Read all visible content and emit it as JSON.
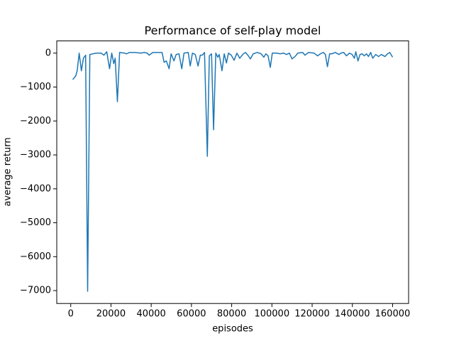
{
  "chart_data": {
    "type": "line",
    "title": "Performance of self-play model",
    "x_label": "episodes",
    "y_label": "average return",
    "color": "#1f77b4",
    "x": [
      1000,
      2500,
      3200,
      4200,
      5300,
      6300,
      7400,
      8400,
      9500,
      12700,
      15100,
      16500,
      17900,
      19300,
      20400,
      21400,
      22100,
      23200,
      24300,
      26700,
      27800,
      29200,
      32000,
      34800,
      36600,
      38000,
      39000,
      40800,
      45400,
      46400,
      47500,
      48900,
      49900,
      51300,
      52400,
      53800,
      55200,
      56300,
      58400,
      59400,
      60500,
      61900,
      63300,
      64400,
      65400,
      66500,
      67900,
      68900,
      70000,
      71000,
      72100,
      73100,
      73800,
      75200,
      76300,
      77400,
      78400,
      79800,
      81200,
      82600,
      84000,
      85800,
      86900,
      88300,
      89300,
      90700,
      92800,
      94600,
      96000,
      97000,
      98100,
      99200,
      100200,
      102300,
      104100,
      105800,
      107300,
      108700,
      110000,
      111500,
      112900,
      115300,
      116400,
      118200,
      121000,
      122700,
      124100,
      125500,
      126600,
      127600,
      128700,
      129800,
      131500,
      133300,
      134300,
      135700,
      137100,
      138500,
      139900,
      141000,
      141700,
      142800,
      143800,
      144900,
      145900,
      147000,
      148000,
      149100,
      150100,
      151600,
      153000,
      154400,
      156200,
      157500,
      158600,
      160000
    ],
    "values": [
      -780,
      -670,
      -520,
      0,
      -520,
      -150,
      -60,
      -7020,
      -40,
      0,
      0,
      -60,
      40,
      -460,
      0,
      -310,
      -150,
      -1430,
      20,
      0,
      -20,
      20,
      20,
      0,
      20,
      0,
      -60,
      20,
      20,
      -270,
      -230,
      -460,
      -20,
      -230,
      -40,
      -20,
      -460,
      0,
      20,
      -380,
      0,
      -40,
      -380,
      -60,
      -60,
      20,
      -3040,
      -80,
      -20,
      -2260,
      0,
      -120,
      -40,
      -520,
      -20,
      -290,
      0,
      -60,
      -210,
      0,
      -150,
      -20,
      20,
      -80,
      -170,
      -20,
      20,
      -20,
      -120,
      -20,
      -80,
      -420,
      0,
      0,
      -20,
      0,
      -40,
      0,
      -170,
      -100,
      0,
      20,
      -60,
      20,
      0,
      -80,
      -20,
      20,
      -40,
      -400,
      -20,
      -20,
      20,
      -40,
      0,
      20,
      -80,
      0,
      -40,
      -150,
      40,
      -230,
      -40,
      -20,
      -80,
      -20,
      -100,
      20,
      -150,
      -40,
      -100,
      -40,
      -100,
      -20,
      20,
      -120
    ],
    "xlim": [
      -6950,
      167950
    ],
    "ylim": [
      -7380,
      360
    ],
    "xticks": [
      0,
      20000,
      40000,
      60000,
      80000,
      100000,
      120000,
      140000,
      160000
    ],
    "yticks": [
      {
        "value": -7000,
        "label": "−7000"
      },
      {
        "value": -6000,
        "label": "−6000"
      },
      {
        "value": -5000,
        "label": "−5000"
      },
      {
        "value": -4000,
        "label": "−4000"
      },
      {
        "value": -3000,
        "label": "−3000"
      },
      {
        "value": -2000,
        "label": "−2000"
      },
      {
        "value": -1000,
        "label": "−1000"
      },
      0
    ]
  }
}
